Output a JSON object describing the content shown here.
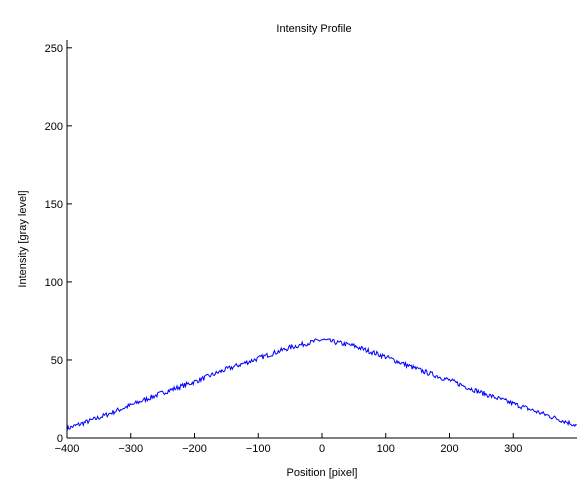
{
  "chart_data": {
    "type": "line",
    "title": "Intensity Profile",
    "xlabel": "Position [pixel]",
    "ylabel": "Intensity [gray level]",
    "xlim": [
      -400,
      400
    ],
    "ylim": [
      0,
      255
    ],
    "x_ticks": [
      -400,
      -300,
      -200,
      -100,
      0,
      100,
      200,
      300
    ],
    "y_ticks": [
      0,
      50,
      100,
      150,
      200,
      250
    ],
    "grid": false,
    "series": [
      {
        "color": "#0000ff",
        "x": [
          -400,
          -350,
          -300,
          -250,
          -200,
          -150,
          -100,
          -50,
          0,
          50,
          100,
          150,
          200,
          250,
          300,
          350,
          400
        ],
        "y": [
          6,
          13,
          21,
          29,
          36,
          44,
          51,
          58,
          63,
          59,
          52,
          44,
          37,
          29,
          22,
          15,
          8
        ]
      }
    ]
  }
}
